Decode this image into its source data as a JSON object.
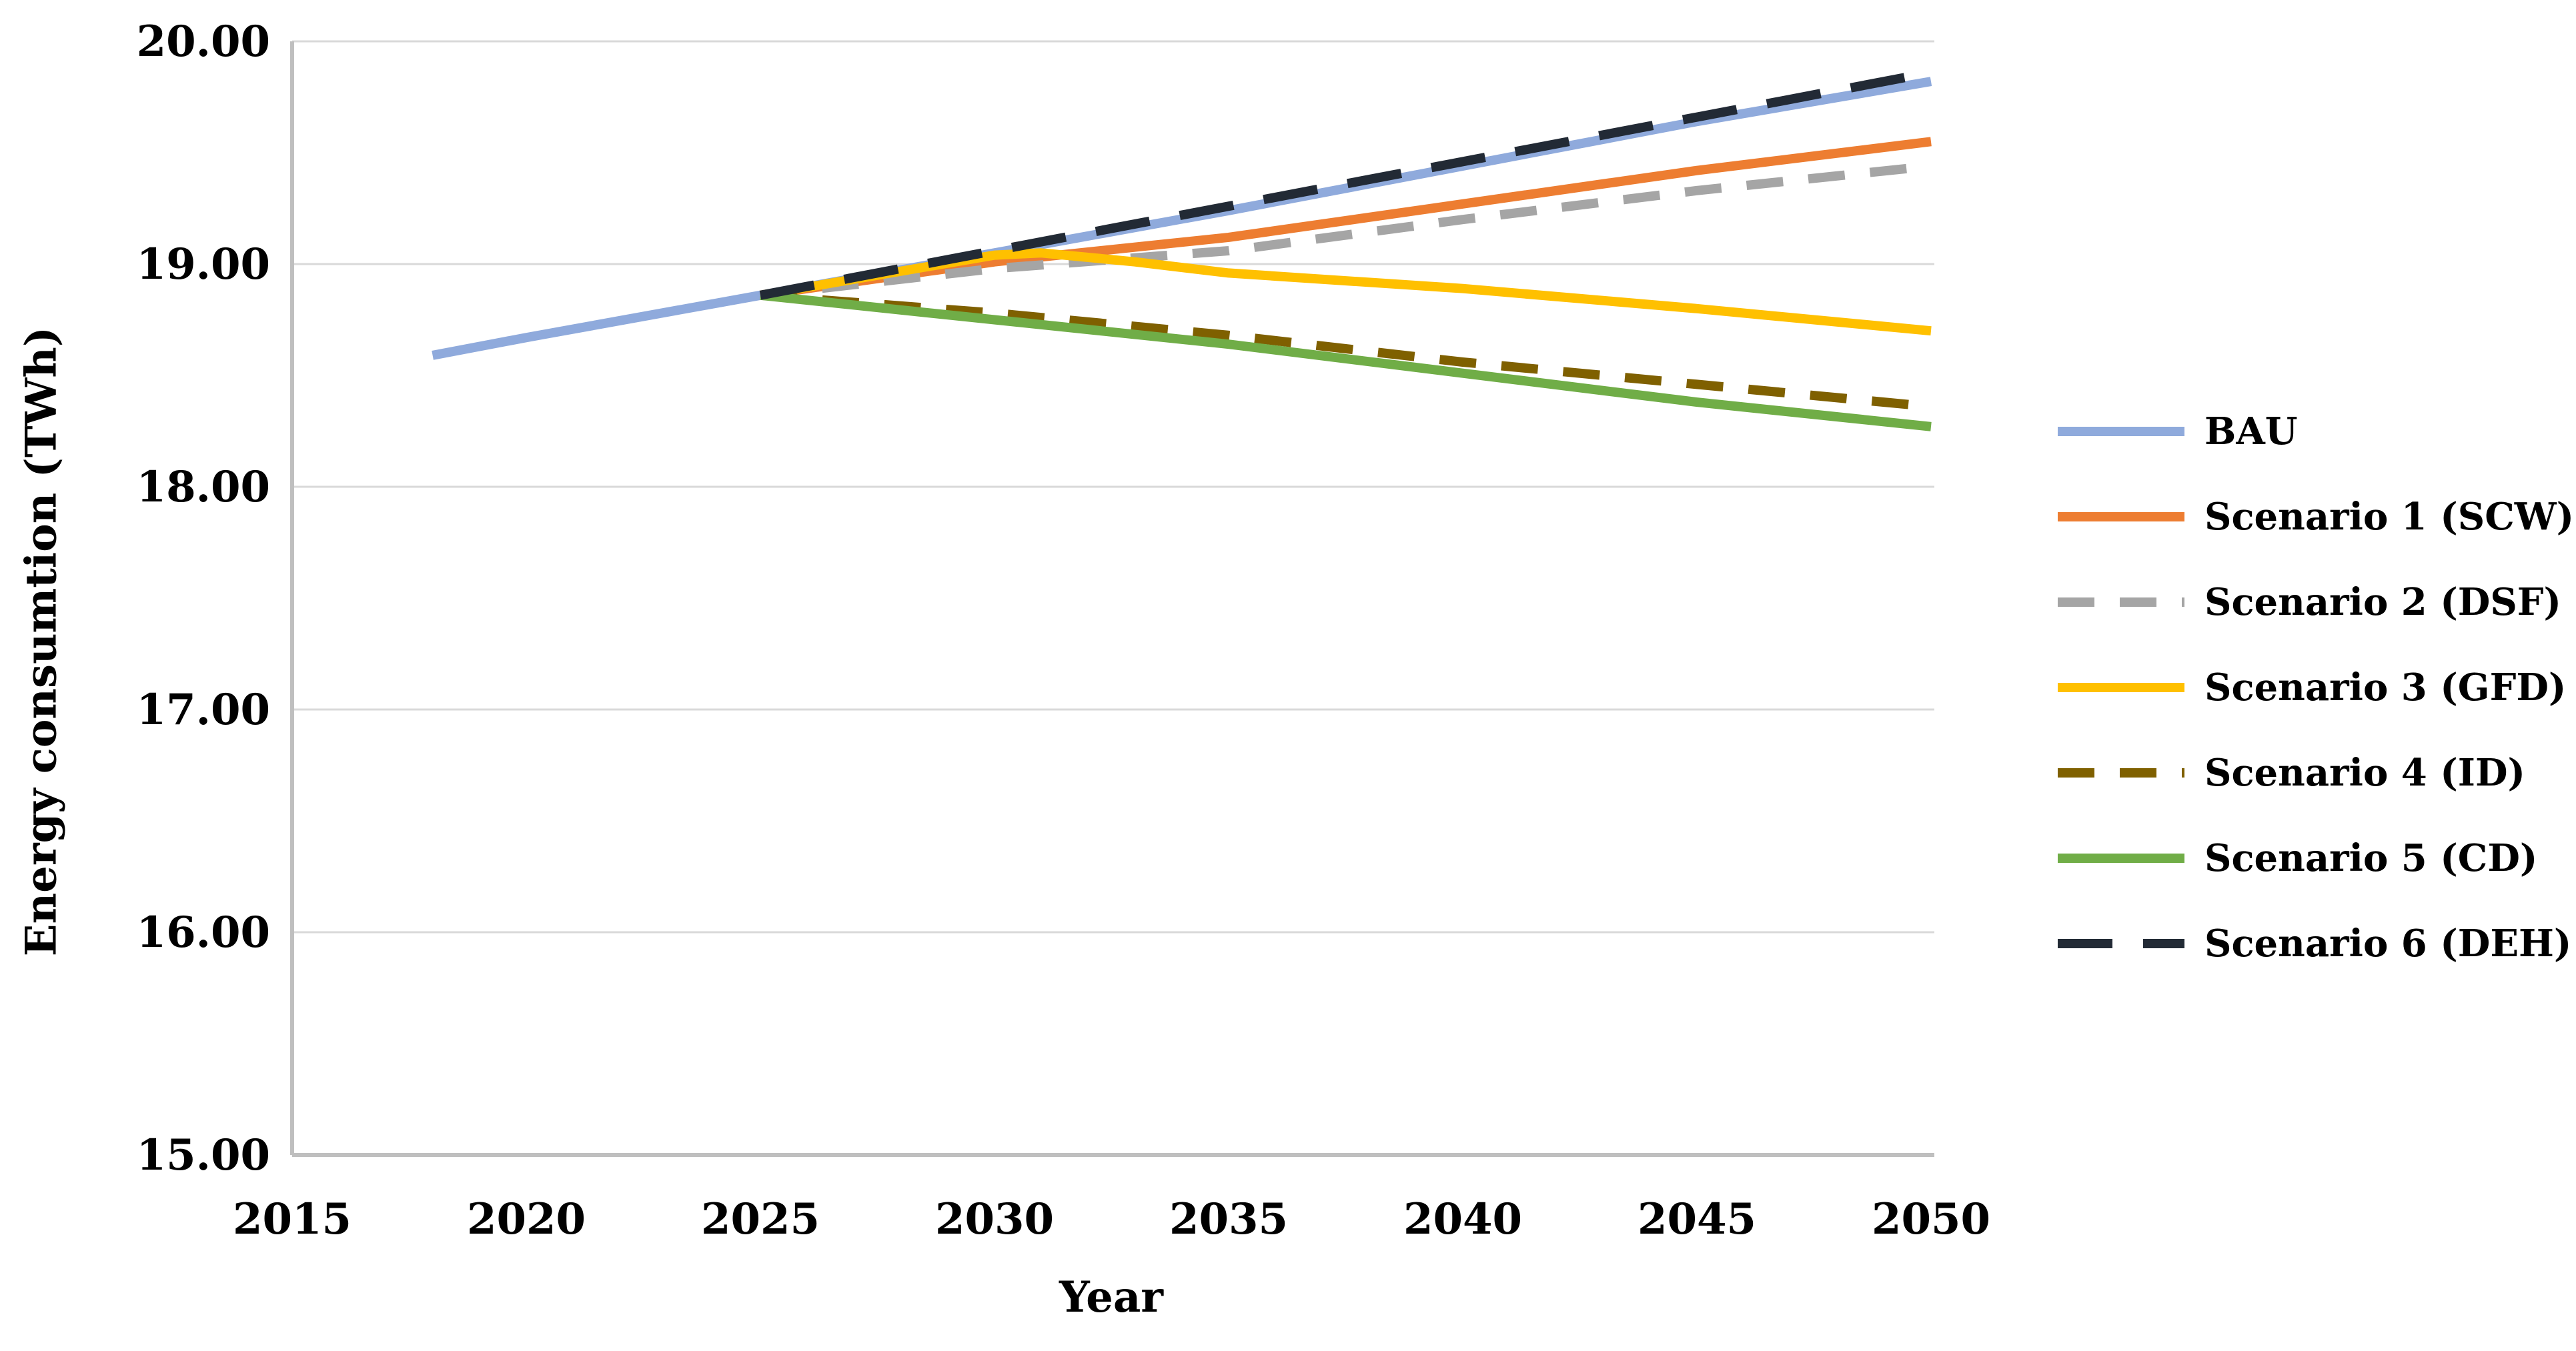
{
  "figure": {
    "background": "#ffffff",
    "grid_color": "#D9D9D9",
    "axis_color": "#BFBFBF"
  },
  "chart_data": {
    "type": "line",
    "title": "",
    "xlabel": "Year",
    "ylabel": "Energy consumtion (TWh)",
    "x_range": [
      2015,
      2050
    ],
    "y_range": [
      15.0,
      20.0
    ],
    "grid": "horizontal-only",
    "legend_position": "right",
    "xticks": [
      2015,
      2020,
      2025,
      2030,
      2035,
      2040,
      2045,
      2050
    ],
    "yticks": [
      {
        "value": 20.0,
        "label": "20.00"
      },
      {
        "value": 19.0,
        "label": "19.00"
      },
      {
        "value": 18.0,
        "label": "18.00"
      },
      {
        "value": 17.0,
        "label": "17.00"
      },
      {
        "value": 16.0,
        "label": "16.00"
      },
      {
        "value": 15.0,
        "label": "15.00"
      }
    ],
    "series": [
      {
        "name": "BAU",
        "color": "#8FAADC",
        "style": "solid",
        "dash": null,
        "points": [
          [
            2018,
            18.59
          ],
          [
            2020,
            18.67
          ],
          [
            2025,
            18.86
          ],
          [
            2030,
            19.05
          ],
          [
            2035,
            19.24
          ],
          [
            2040,
            19.44
          ],
          [
            2045,
            19.64
          ],
          [
            2050,
            19.82
          ]
        ]
      },
      {
        "name": "Scenario 1 (SCW)",
        "color": "#ED7D31",
        "style": "solid",
        "dash": null,
        "points": [
          [
            2025,
            18.86
          ],
          [
            2030,
            19.01
          ],
          [
            2035,
            19.12
          ],
          [
            2040,
            19.27
          ],
          [
            2045,
            19.42
          ],
          [
            2050,
            19.55
          ]
        ]
      },
      {
        "name": "Scenario 2 (DSF)",
        "color": "#A5A5A5",
        "style": "dashed",
        "dash": [
          55,
          38
        ],
        "points": [
          [
            2025,
            18.86
          ],
          [
            2030,
            18.98
          ],
          [
            2035,
            19.06
          ],
          [
            2040,
            19.2
          ],
          [
            2045,
            19.33
          ],
          [
            2050,
            19.44
          ]
        ]
      },
      {
        "name": "Scenario 3 (GFD)",
        "color": "#FFC000",
        "style": "solid",
        "dash": null,
        "points": [
          [
            2025,
            18.86
          ],
          [
            2030,
            19.04
          ],
          [
            2031,
            19.05
          ],
          [
            2033,
            19.01
          ],
          [
            2035,
            18.96
          ],
          [
            2040,
            18.89
          ],
          [
            2045,
            18.8
          ],
          [
            2050,
            18.7
          ]
        ]
      },
      {
        "name": "Scenario 4 (ID)",
        "color": "#7F6000",
        "style": "dashed",
        "dash": [
          55,
          38
        ],
        "points": [
          [
            2025,
            18.86
          ],
          [
            2030,
            18.78
          ],
          [
            2035,
            18.68
          ],
          [
            2040,
            18.56
          ],
          [
            2045,
            18.46
          ],
          [
            2050,
            18.36
          ]
        ]
      },
      {
        "name": "Scenario 5 (CD)",
        "color": "#70AD47",
        "style": "solid",
        "dash": null,
        "points": [
          [
            2025,
            18.86
          ],
          [
            2030,
            18.75
          ],
          [
            2035,
            18.64
          ],
          [
            2040,
            18.51
          ],
          [
            2045,
            18.38
          ],
          [
            2050,
            18.27
          ]
        ]
      },
      {
        "name": "Scenario 6 (DEH)",
        "color": "#222A35",
        "style": "dashed",
        "dash": [
          82,
          46
        ],
        "points": [
          [
            2025,
            18.86
          ],
          [
            2030,
            19.06
          ],
          [
            2035,
            19.26
          ],
          [
            2040,
            19.46
          ],
          [
            2045,
            19.66
          ],
          [
            2050,
            19.86
          ]
        ]
      }
    ]
  }
}
